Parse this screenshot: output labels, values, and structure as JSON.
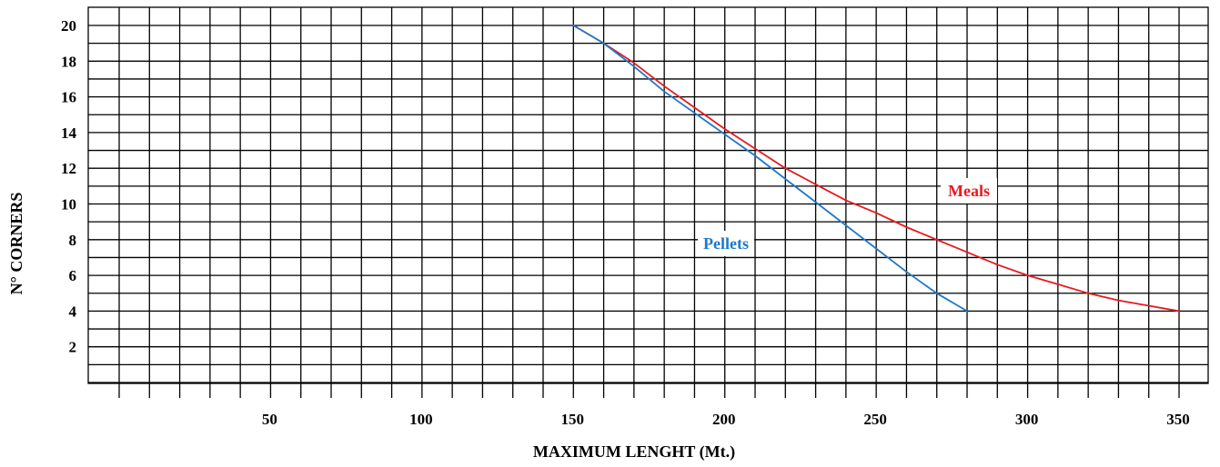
{
  "chart_data": {
    "type": "line",
    "title": "",
    "xlabel": "MAXIMUM LENGHT (Mt.)",
    "ylabel": "N° CORNERS",
    "xlim": [
      0,
      350
    ],
    "ylim": [
      0,
      20
    ],
    "x_ticks": [
      50,
      100,
      150,
      200,
      250,
      300,
      350
    ],
    "y_ticks": [
      2,
      4,
      6,
      8,
      10,
      12,
      14,
      16,
      18,
      20
    ],
    "grid": true,
    "series": [
      {
        "name": "Meals",
        "color": "#e8191e",
        "x": [
          150,
          160,
          170,
          180,
          190,
          200,
          210,
          220,
          230,
          240,
          250,
          260,
          270,
          280,
          290,
          300,
          310,
          320,
          330,
          340,
          350
        ],
        "y": [
          20,
          19.0,
          17.9,
          16.6,
          15.4,
          14.2,
          13.1,
          12.0,
          11.1,
          10.2,
          9.5,
          8.7,
          8.0,
          7.3,
          6.6,
          6.0,
          5.5,
          5.0,
          4.6,
          4.3,
          4.0
        ]
      },
      {
        "name": "Pellets",
        "color": "#1f78c8",
        "x": [
          150,
          160,
          170,
          180,
          190,
          200,
          210,
          220,
          230,
          240,
          250,
          260,
          270,
          280
        ],
        "y": [
          20,
          19.0,
          17.7,
          16.3,
          15.1,
          13.9,
          12.7,
          11.4,
          10.1,
          8.8,
          7.5,
          6.2,
          5.0,
          4.0
        ]
      }
    ]
  }
}
